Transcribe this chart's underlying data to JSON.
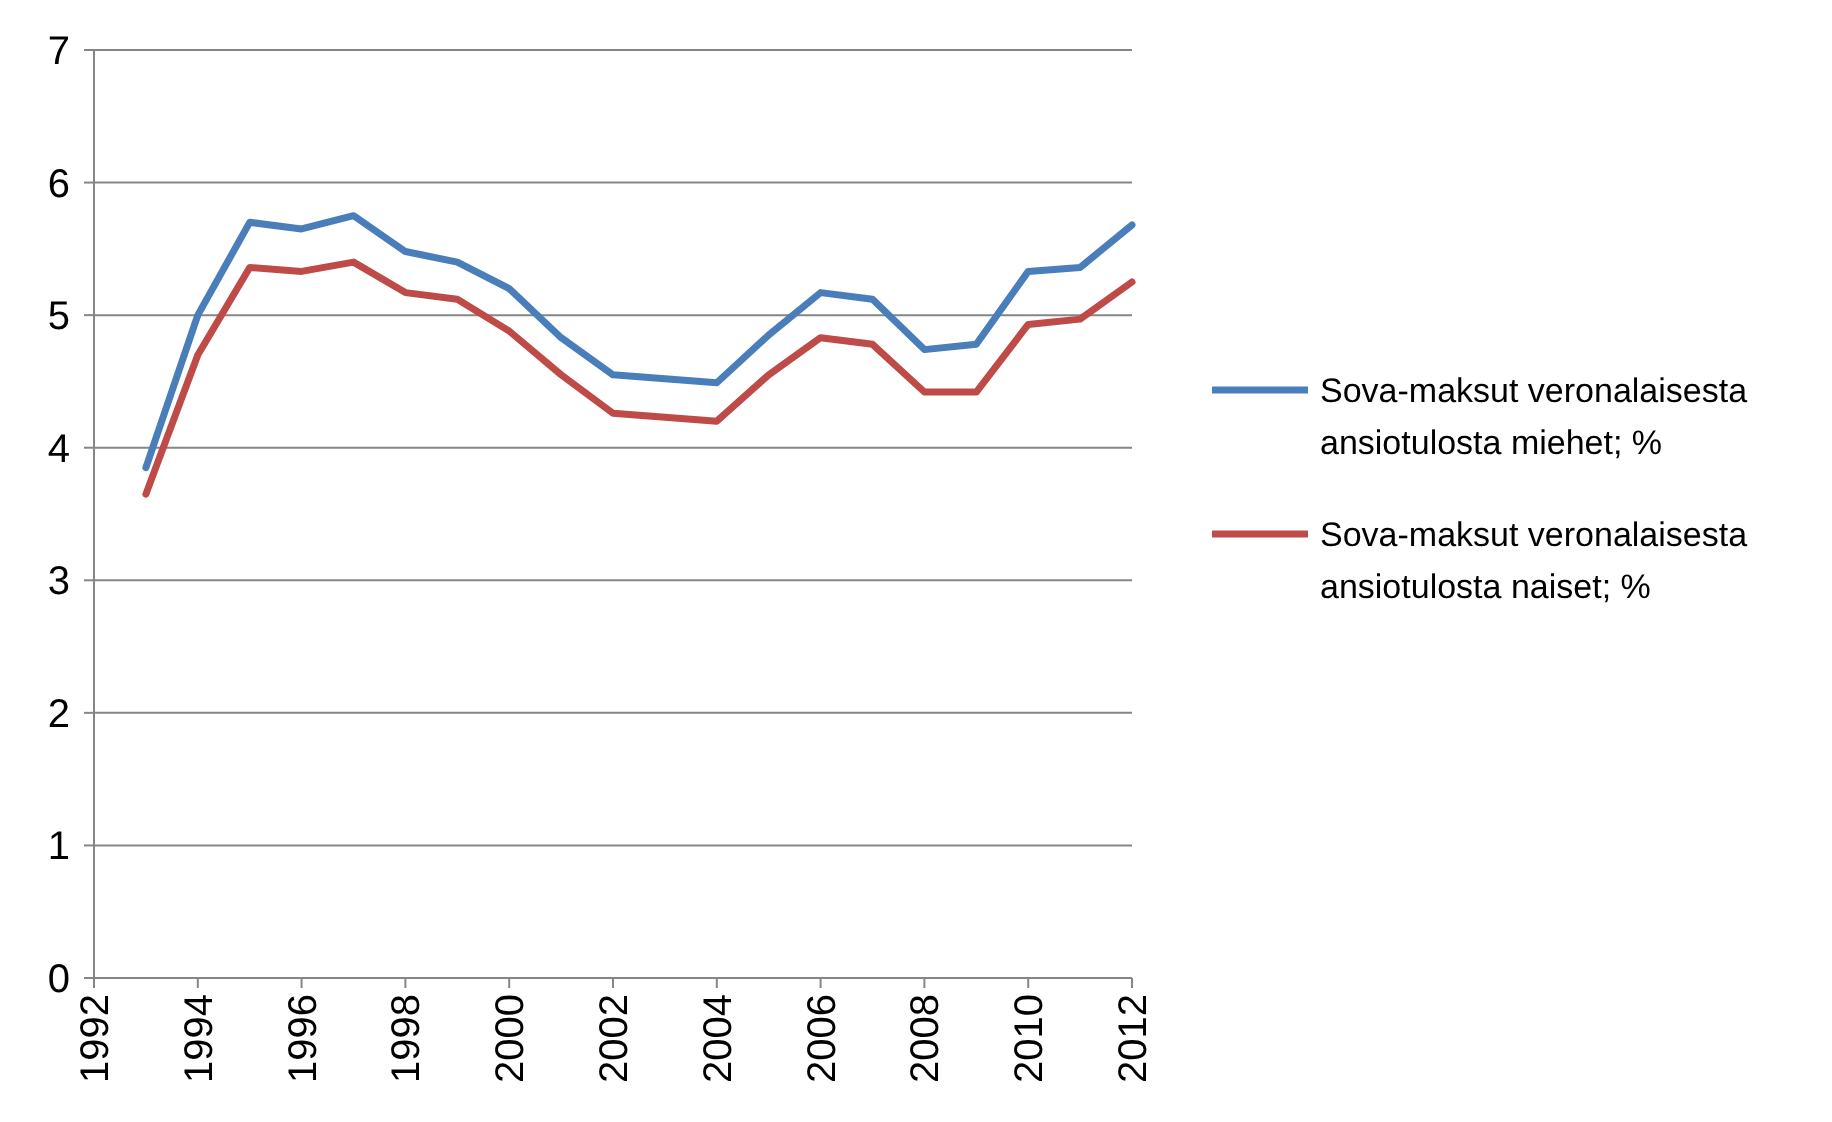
{
  "chart_data": {
    "type": "line",
    "x": [
      1993,
      1994,
      1995,
      1996,
      1997,
      1998,
      1999,
      2000,
      2001,
      2002,
      2003,
      2004,
      2005,
      2006,
      2007,
      2008,
      2009,
      2010,
      2011,
      2012
    ],
    "series": [
      {
        "name": "Sova-maksut veronalaisesta ansiotulosta miehet; %",
        "color": "#4a7ebb",
        "values": [
          3.85,
          5.0,
          5.7,
          5.65,
          5.75,
          5.48,
          5.4,
          5.2,
          4.83,
          4.55,
          4.52,
          4.49,
          4.85,
          5.17,
          5.12,
          4.74,
          4.78,
          5.33,
          5.36,
          5.68
        ]
      },
      {
        "name": "Sova-maksut veronalaisesta ansiotulosta naiset; %",
        "color": "#be4b48",
        "values": [
          3.65,
          4.7,
          5.36,
          5.33,
          5.4,
          5.17,
          5.12,
          4.88,
          4.55,
          4.26,
          4.23,
          4.2,
          4.55,
          4.83,
          4.78,
          4.42,
          4.42,
          4.93,
          4.97,
          5.25
        ]
      }
    ],
    "xlim": [
      1992,
      2012
    ],
    "xticks": [
      1992,
      1994,
      1996,
      1998,
      2000,
      2002,
      2004,
      2006,
      2008,
      2010,
      2012
    ],
    "ylim": [
      0,
      7
    ],
    "yticks": [
      0,
      1,
      2,
      3,
      4,
      5,
      6,
      7
    ],
    "grid": "y",
    "legend": "right",
    "marker": "none",
    "line_style": "solid"
  }
}
